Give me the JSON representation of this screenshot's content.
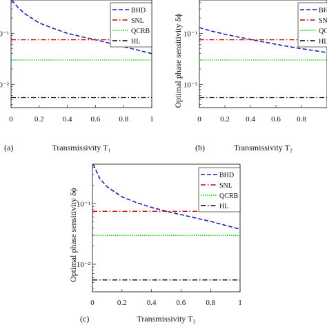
{
  "figure": {
    "panels": [
      {
        "panel_label": "(a)",
        "xlabel": "Transmissivity T₁",
        "ylabel": "",
        "legend": [
          {
            "name": "BHD",
            "color": "#1f1fb4",
            "dash": "dashed"
          },
          {
            "name": "SNL",
            "color": "#cc0000",
            "dash": "dashdot"
          },
          {
            "name": "QCRB",
            "color": "#00cc00",
            "dash": "dotted"
          },
          {
            "name": "HL",
            "color": "#000000",
            "dash": "dashdot"
          }
        ]
      },
      {
        "panel_label": "(b)",
        "xlabel": "Transmissivity T₂",
        "ylabel": "Optimal phase sensitivity δϕ",
        "legend": [
          {
            "name": "BHD",
            "color": "#1f1fb4",
            "dash": "dashed"
          },
          {
            "name": "SNL",
            "color": "#cc0000",
            "dash": "dashdot"
          },
          {
            "name": "QCRB",
            "color": "#00cc00",
            "dash": "dotted"
          },
          {
            "name": "HL",
            "color": "#000000",
            "dash": "dashdot"
          }
        ]
      },
      {
        "panel_label": "(c)",
        "xlabel": "Transmissivity T₃",
        "ylabel": "Optimal phase sensitivity δϕ",
        "legend": [
          {
            "name": "BHD",
            "color": "#1f1fb4",
            "dash": "dashed"
          },
          {
            "name": "SNL",
            "color": "#cc0000",
            "dash": "dashdot"
          },
          {
            "name": "QCRB",
            "color": "#00cc00",
            "dash": "dotted"
          },
          {
            "name": "HL",
            "color": "#000000",
            "dash": "dashdot"
          }
        ]
      }
    ]
  },
  "chart_data": [
    {
      "type": "line",
      "title": "",
      "xlabel": "Transmissivity T₁",
      "ylabel": "",
      "yscale": "log",
      "xlim": [
        0,
        1
      ],
      "ylim": [
        0.0035,
        0.45
      ],
      "xticks": [
        "0",
        "0.2",
        "0.4",
        "0.6",
        "0.8",
        "1"
      ],
      "yticks": [
        "10⁻²",
        "10⁻¹"
      ],
      "legend_position": "top-right",
      "grid": false,
      "series": [
        {
          "name": "BHD",
          "x": [
            0.005,
            0.05,
            0.1,
            0.2,
            0.3,
            0.4,
            0.5,
            0.6,
            0.7,
            0.8,
            0.9,
            1.0
          ],
          "y": [
            0.45,
            0.32,
            0.24,
            0.16,
            0.125,
            0.1,
            0.086,
            0.075,
            0.064,
            0.055,
            0.047,
            0.04
          ]
        },
        {
          "name": "SNL",
          "x": [
            0,
            1
          ],
          "y": [
            0.075,
            0.075
          ]
        },
        {
          "name": "QCRB",
          "x": [
            0,
            1
          ],
          "y": [
            0.03,
            0.03
          ]
        },
        {
          "name": "HL",
          "x": [
            0,
            1
          ],
          "y": [
            0.0055,
            0.0055
          ]
        }
      ]
    },
    {
      "type": "line",
      "title": "",
      "xlabel": "Transmissivity T₂",
      "ylabel": "Optimal phase sensitivity δϕ",
      "yscale": "log",
      "xlim": [
        0,
        1
      ],
      "ylim": [
        0.0035,
        0.45
      ],
      "xticks": [
        "0",
        "0.2",
        "0.4",
        "0.6",
        "0.8"
      ],
      "yticks": [
        "10⁻²",
        "10⁻¹"
      ],
      "legend_position": "top-right",
      "grid": false,
      "series": [
        {
          "name": "BHD",
          "x": [
            0,
            0.1,
            0.2,
            0.3,
            0.4,
            0.5,
            0.6,
            0.7,
            0.8,
            0.9,
            1.0
          ],
          "y": [
            0.13,
            0.11,
            0.096,
            0.085,
            0.076,
            0.068,
            0.061,
            0.055,
            0.05,
            0.046,
            0.042
          ]
        },
        {
          "name": "SNL",
          "x": [
            0,
            1
          ],
          "y": [
            0.075,
            0.075
          ]
        },
        {
          "name": "QCRB",
          "x": [
            0,
            1
          ],
          "y": [
            0.03,
            0.03
          ]
        },
        {
          "name": "HL",
          "x": [
            0,
            1
          ],
          "y": [
            0.0055,
            0.0055
          ]
        }
      ]
    },
    {
      "type": "line",
      "title": "",
      "xlabel": "Transmissivity T₃",
      "ylabel": "Optimal phase sensitivity δϕ",
      "yscale": "log",
      "xlim": [
        0,
        1
      ],
      "ylim": [
        0.0035,
        0.45
      ],
      "xticks": [
        "0",
        "0.2",
        "0.4",
        "0.6",
        "0.8",
        "1"
      ],
      "yticks": [
        "10⁻²",
        "10⁻¹"
      ],
      "legend_position": "top-right",
      "grid": false,
      "series": [
        {
          "name": "BHD",
          "x": [
            0.005,
            0.05,
            0.1,
            0.2,
            0.3,
            0.4,
            0.5,
            0.6,
            0.7,
            0.8,
            0.9,
            1.0
          ],
          "y": [
            0.45,
            0.26,
            0.19,
            0.13,
            0.104,
            0.087,
            0.075,
            0.066,
            0.058,
            0.051,
            0.044,
            0.038
          ]
        },
        {
          "name": "SNL",
          "x": [
            0,
            1
          ],
          "y": [
            0.075,
            0.075
          ]
        },
        {
          "name": "QCRB",
          "x": [
            0,
            1
          ],
          "y": [
            0.03,
            0.03
          ]
        },
        {
          "name": "HL",
          "x": [
            0,
            1
          ],
          "y": [
            0.0055,
            0.0055
          ]
        }
      ]
    }
  ]
}
